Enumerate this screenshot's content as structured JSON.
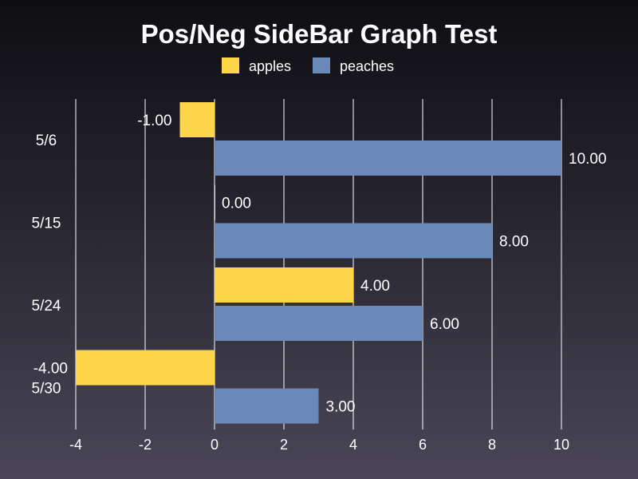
{
  "chart_data": {
    "type": "bar",
    "orientation": "horizontal",
    "title": "Pos/Neg SideBar Graph Test",
    "categories": [
      "5/6",
      "5/15",
      "5/24",
      "5/30"
    ],
    "series": [
      {
        "name": "apples",
        "color": "#ffd54a",
        "values": [
          -1,
          0,
          4,
          -4
        ]
      },
      {
        "name": "peaches",
        "color": "#6a88b8",
        "values": [
          10,
          8,
          6,
          3
        ]
      }
    ],
    "value_labels": {
      "apples": [
        "-1.00",
        "0.00",
        "4.00",
        "-4.00"
      ],
      "peaches": [
        "10.00",
        "8.00",
        "6.00",
        "3.00"
      ]
    },
    "xlim": [
      -4,
      10
    ],
    "xticks": [
      -4,
      -2,
      0,
      2,
      4,
      6,
      8,
      10
    ],
    "xtick_labels": [
      "-4",
      "-2",
      "0",
      "2",
      "4",
      "6",
      "8",
      "10"
    ],
    "grid": true,
    "legend": "top-center",
    "xlabel": "",
    "ylabel": ""
  }
}
